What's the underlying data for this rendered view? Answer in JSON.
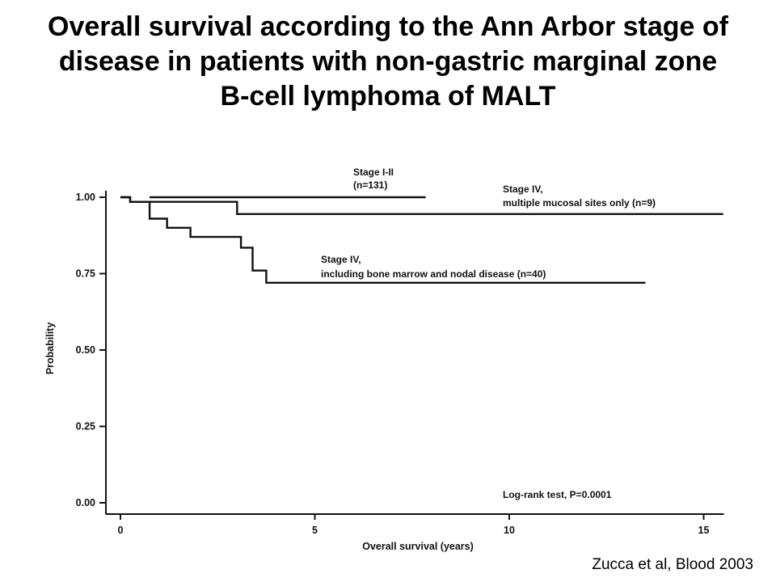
{
  "slide": {
    "title_lines": [
      "Overall survival according to the Ann Arbor stage of",
      "disease in patients with non-gastric marginal zone",
      "B-cell lymphoma of MALT"
    ],
    "citation": "Zucca et al, Blood 2003"
  },
  "chart_data": {
    "type": "line",
    "step": true,
    "xlabel": "Overall survival (years)",
    "ylabel": "Probability",
    "xlim": [
      0,
      15.5
    ],
    "ylim": [
      0,
      1
    ],
    "xticks": [
      0,
      5,
      10,
      15
    ],
    "xtick_labels": [
      "0",
      "5",
      "10",
      "15"
    ],
    "yticks": [
      0,
      0.25,
      0.5,
      0.75,
      1.0
    ],
    "ytick_labels": [
      "0.00",
      "0.25",
      "0.50",
      "0.75",
      "1.00"
    ],
    "grid": false,
    "series": [
      {
        "label_lines": [
          "Stage I-II",
          "(n=131)"
        ],
        "x": [
          0.75,
          7.85
        ],
        "y": [
          1.0,
          1.0
        ]
      },
      {
        "label_lines": [
          "Stage IV,",
          "multiple mucosal sites only (n=9)"
        ],
        "x": [
          0,
          0.25,
          0.25,
          3.0,
          3.0,
          15.5
        ],
        "y": [
          1.0,
          1.0,
          0.985,
          0.985,
          0.945,
          0.945
        ]
      },
      {
        "label_lines": [
          "Stage IV,",
          "including bone marrow and nodal disease (n=40)"
        ],
        "x": [
          0,
          0.25,
          0.25,
          0.75,
          0.75,
          1.2,
          1.2,
          1.8,
          1.8,
          3.1,
          3.1,
          3.4,
          3.4,
          3.75,
          3.75,
          13.5
        ],
        "y": [
          1.0,
          1.0,
          0.985,
          0.985,
          0.93,
          0.93,
          0.9,
          0.9,
          0.87,
          0.87,
          0.835,
          0.835,
          0.76,
          0.76,
          0.72,
          0.72
        ]
      }
    ],
    "annotations": [
      "Log-rank test, P=0.0001"
    ]
  }
}
